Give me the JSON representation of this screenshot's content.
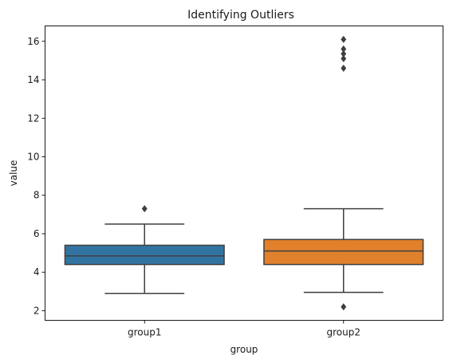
{
  "chart_data": {
    "type": "boxplot",
    "title": "Identifying Outliers",
    "xlabel": "group",
    "ylabel": "value",
    "categories": [
      "group1",
      "group2"
    ],
    "ylim": [
      1.5,
      16.8
    ],
    "yticks": [
      2,
      4,
      6,
      8,
      10,
      12,
      14,
      16
    ],
    "grid": false,
    "legend": "none",
    "boxes": [
      {
        "category": "group1",
        "color": "#3274a1",
        "whisker_low": 2.9,
        "q1": 4.4,
        "median": 4.85,
        "q3": 5.4,
        "whisker_high": 6.5,
        "outliers": [
          7.3
        ]
      },
      {
        "category": "group2",
        "color": "#e1812c",
        "whisker_low": 2.95,
        "q1": 4.4,
        "median": 5.1,
        "q3": 5.7,
        "whisker_high": 7.3,
        "outliers": [
          2.2,
          14.6,
          15.1,
          15.35,
          15.6,
          16.1
        ]
      }
    ]
  }
}
